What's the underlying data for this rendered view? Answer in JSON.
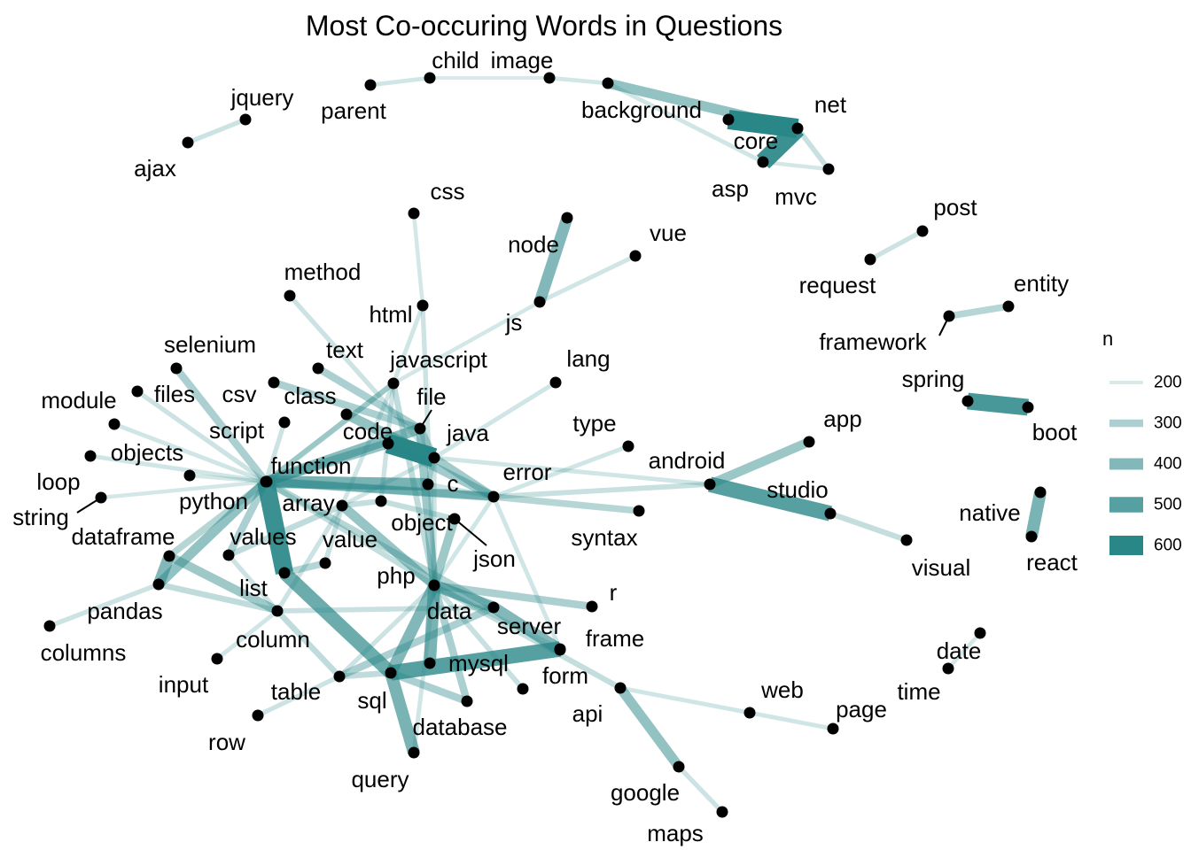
{
  "title": "Most Co-occuring Words in Questions",
  "edge_color": "#2a8788",
  "node_color": "#000000",
  "legend": {
    "title": "n",
    "entries": [
      {
        "label": "200",
        "value": 200
      },
      {
        "label": "300",
        "value": 300
      },
      {
        "label": "400",
        "value": 400
      },
      {
        "label": "500",
        "value": 500
      },
      {
        "label": "600",
        "value": 600
      }
    ]
  },
  "nodes": [
    {
      "id": "jquery",
      "label": "jquery"
    },
    {
      "id": "ajax",
      "label": "ajax"
    },
    {
      "id": "parent",
      "label": "parent"
    },
    {
      "id": "child",
      "label": "child"
    },
    {
      "id": "image",
      "label": "image"
    },
    {
      "id": "background",
      "label": "background"
    },
    {
      "id": "core",
      "label": "core"
    },
    {
      "id": "net",
      "label": "net"
    },
    {
      "id": "asp",
      "label": "asp"
    },
    {
      "id": "mvc",
      "label": "mvc"
    },
    {
      "id": "css",
      "label": "css"
    },
    {
      "id": "node",
      "label": "node"
    },
    {
      "id": "vue",
      "label": "vue"
    },
    {
      "id": "js",
      "label": "js"
    },
    {
      "id": "post",
      "label": "post"
    },
    {
      "id": "request",
      "label": "request"
    },
    {
      "id": "entity",
      "label": "entity"
    },
    {
      "id": "framework",
      "label": "framework"
    },
    {
      "id": "method",
      "label": "method"
    },
    {
      "id": "html",
      "label": "html"
    },
    {
      "id": "selenium",
      "label": "selenium"
    },
    {
      "id": "text",
      "label": "text"
    },
    {
      "id": "javascript",
      "label": "javascript"
    },
    {
      "id": "lang",
      "label": "lang"
    },
    {
      "id": "module",
      "label": "module"
    },
    {
      "id": "files",
      "label": "files"
    },
    {
      "id": "csv",
      "label": "csv"
    },
    {
      "id": "class",
      "label": "class"
    },
    {
      "id": "file",
      "label": "file"
    },
    {
      "id": "spring",
      "label": "spring"
    },
    {
      "id": "boot",
      "label": "boot"
    },
    {
      "id": "script",
      "label": "script"
    },
    {
      "id": "code",
      "label": "code"
    },
    {
      "id": "java",
      "label": "java"
    },
    {
      "id": "type",
      "label": "type"
    },
    {
      "id": "app",
      "label": "app"
    },
    {
      "id": "objects",
      "label": "objects"
    },
    {
      "id": "function",
      "label": "function"
    },
    {
      "id": "error",
      "label": "error"
    },
    {
      "id": "android",
      "label": "android"
    },
    {
      "id": "loop",
      "label": "loop"
    },
    {
      "id": "c",
      "label": "c"
    },
    {
      "id": "studio",
      "label": "studio"
    },
    {
      "id": "python",
      "label": "python"
    },
    {
      "id": "string",
      "label": "string"
    },
    {
      "id": "array",
      "label": "array"
    },
    {
      "id": "native",
      "label": "native"
    },
    {
      "id": "object",
      "label": "object"
    },
    {
      "id": "dataframe",
      "label": "dataframe"
    },
    {
      "id": "values",
      "label": "values"
    },
    {
      "id": "value",
      "label": "value"
    },
    {
      "id": "syntax",
      "label": "syntax"
    },
    {
      "id": "json",
      "label": "json"
    },
    {
      "id": "react",
      "label": "react"
    },
    {
      "id": "visual",
      "label": "visual"
    },
    {
      "id": "php",
      "label": "php"
    },
    {
      "id": "list",
      "label": "list"
    },
    {
      "id": "r",
      "label": "r"
    },
    {
      "id": "pandas",
      "label": "pandas"
    },
    {
      "id": "data",
      "label": "data"
    },
    {
      "id": "server",
      "label": "server"
    },
    {
      "id": "frame",
      "label": "frame"
    },
    {
      "id": "columns",
      "label": "columns"
    },
    {
      "id": "column",
      "label": "column"
    },
    {
      "id": "date",
      "label": "date"
    },
    {
      "id": "mysql",
      "label": "mysql"
    },
    {
      "id": "form",
      "label": "form"
    },
    {
      "id": "input",
      "label": "input"
    },
    {
      "id": "web",
      "label": "web"
    },
    {
      "id": "time",
      "label": "time"
    },
    {
      "id": "table",
      "label": "table"
    },
    {
      "id": "sql",
      "label": "sql"
    },
    {
      "id": "api",
      "label": "api"
    },
    {
      "id": "page",
      "label": "page"
    },
    {
      "id": "database",
      "label": "database"
    },
    {
      "id": "row",
      "label": "row"
    },
    {
      "id": "google",
      "label": "google"
    },
    {
      "id": "query",
      "label": "query"
    },
    {
      "id": "maps",
      "label": "maps"
    }
  ],
  "edges": [
    {
      "source": "jquery",
      "target": "ajax",
      "n": 230
    },
    {
      "source": "parent",
      "target": "child",
      "n": 220
    },
    {
      "source": "child",
      "target": "image",
      "n": 200
    },
    {
      "source": "image",
      "target": "background",
      "n": 215
    },
    {
      "source": "background",
      "target": "net",
      "n": 360
    },
    {
      "source": "core",
      "target": "net",
      "n": 600
    },
    {
      "source": "asp",
      "target": "net",
      "n": 560
    },
    {
      "source": "net",
      "target": "mvc",
      "n": 240
    },
    {
      "source": "asp",
      "target": "mvc",
      "n": 210
    },
    {
      "source": "background",
      "target": "asp",
      "n": 220
    },
    {
      "source": "node",
      "target": "js",
      "n": 400
    },
    {
      "source": "js",
      "target": "vue",
      "n": 220
    },
    {
      "source": "js",
      "target": "javascript",
      "n": 210
    },
    {
      "source": "request",
      "target": "post",
      "n": 230
    },
    {
      "source": "framework",
      "target": "entity",
      "n": 280
    },
    {
      "source": "spring",
      "target": "boot",
      "n": 530
    },
    {
      "source": "native",
      "target": "react",
      "n": 420
    },
    {
      "source": "android",
      "target": "app",
      "n": 340
    },
    {
      "source": "android",
      "target": "studio",
      "n": 500
    },
    {
      "source": "studio",
      "target": "visual",
      "n": 250
    },
    {
      "source": "css",
      "target": "html",
      "n": 210
    },
    {
      "source": "html",
      "target": "javascript",
      "n": 220
    },
    {
      "source": "html",
      "target": "php",
      "n": 230
    },
    {
      "source": "method",
      "target": "java",
      "n": 230
    },
    {
      "source": "text",
      "target": "file",
      "n": 300
    },
    {
      "source": "selenium",
      "target": "python",
      "n": 300
    },
    {
      "source": "module",
      "target": "python",
      "n": 220
    },
    {
      "source": "files",
      "target": "python",
      "n": 230
    },
    {
      "source": "objects",
      "target": "python",
      "n": 220
    },
    {
      "source": "loop",
      "target": "python",
      "n": 210
    },
    {
      "source": "string",
      "target": "python",
      "n": 210
    },
    {
      "source": "csv",
      "target": "file",
      "n": 300
    },
    {
      "source": "class",
      "target": "java",
      "n": 360
    },
    {
      "source": "script",
      "target": "python",
      "n": 230
    },
    {
      "source": "code",
      "target": "python",
      "n": 350
    },
    {
      "source": "code",
      "target": "java",
      "n": 620
    },
    {
      "source": "code",
      "target": "error",
      "n": 320
    },
    {
      "source": "file",
      "target": "python",
      "n": 380
    },
    {
      "source": "file",
      "target": "java",
      "n": 300
    },
    {
      "source": "file",
      "target": "php",
      "n": 330
    },
    {
      "source": "javascript",
      "target": "python",
      "n": 240
    },
    {
      "source": "javascript",
      "target": "array",
      "n": 220
    },
    {
      "source": "javascript",
      "target": "object",
      "n": 230
    },
    {
      "source": "javascript",
      "target": "function",
      "n": 250
    },
    {
      "source": "javascript",
      "target": "php",
      "n": 260
    },
    {
      "source": "lang",
      "target": "java",
      "n": 220
    },
    {
      "source": "type",
      "target": "error",
      "n": 220
    },
    {
      "source": "function",
      "target": "python",
      "n": 400
    },
    {
      "source": "function",
      "target": "error",
      "n": 330
    },
    {
      "source": "python",
      "target": "c",
      "n": 420
    },
    {
      "source": "python",
      "target": "error",
      "n": 300
    },
    {
      "source": "python",
      "target": "list",
      "n": 560
    },
    {
      "source": "python",
      "target": "values",
      "n": 300
    },
    {
      "source": "python",
      "target": "pandas",
      "n": 360
    },
    {
      "source": "python",
      "target": "dataframe",
      "n": 280
    },
    {
      "source": "python",
      "target": "php",
      "n": 250
    },
    {
      "source": "python",
      "target": "data",
      "n": 280
    },
    {
      "source": "java",
      "target": "error",
      "n": 320
    },
    {
      "source": "java",
      "target": "c",
      "n": 240
    },
    {
      "source": "java",
      "target": "php",
      "n": 230
    },
    {
      "source": "java",
      "target": "array",
      "n": 220
    },
    {
      "source": "java",
      "target": "android",
      "n": 220
    },
    {
      "source": "error",
      "target": "android",
      "n": 240
    },
    {
      "source": "error",
      "target": "syntax",
      "n": 280
    },
    {
      "source": "error",
      "target": "server",
      "n": 220
    },
    {
      "source": "error",
      "target": "php",
      "n": 220
    },
    {
      "source": "c",
      "target": "error",
      "n": 230
    },
    {
      "source": "array",
      "target": "php",
      "n": 350
    },
    {
      "source": "array",
      "target": "values",
      "n": 260
    },
    {
      "source": "array",
      "target": "object",
      "n": 250
    },
    {
      "source": "array",
      "target": "value",
      "n": 240
    },
    {
      "source": "array",
      "target": "column",
      "n": 230
    },
    {
      "source": "object",
      "target": "json",
      "n": 250
    },
    {
      "source": "json",
      "target": "php",
      "n": 330
    },
    {
      "source": "value",
      "target": "list",
      "n": 280
    },
    {
      "source": "values",
      "target": "column",
      "n": 230
    },
    {
      "source": "dataframe",
      "target": "column",
      "n": 330
    },
    {
      "source": "dataframe",
      "target": "pandas",
      "n": 400
    },
    {
      "source": "pandas",
      "target": "columns",
      "n": 230
    },
    {
      "source": "pandas",
      "target": "column",
      "n": 260
    },
    {
      "source": "php",
      "target": "mysql",
      "n": 420
    },
    {
      "source": "php",
      "target": "data",
      "n": 400
    },
    {
      "source": "php",
      "target": "sql",
      "n": 400
    },
    {
      "source": "php",
      "target": "form",
      "n": 240
    },
    {
      "source": "php",
      "target": "database",
      "n": 300
    },
    {
      "source": "php",
      "target": "table",
      "n": 230
    },
    {
      "source": "php",
      "target": "r",
      "n": 300
    },
    {
      "source": "php",
      "target": "server",
      "n": 230
    },
    {
      "source": "php",
      "target": "api",
      "n": 250
    },
    {
      "source": "php",
      "target": "query",
      "n": 220
    },
    {
      "source": "data",
      "target": "frame",
      "n": 400
    },
    {
      "source": "data",
      "target": "column",
      "n": 240
    },
    {
      "source": "data",
      "target": "table",
      "n": 300
    },
    {
      "source": "server",
      "target": "sql",
      "n": 500
    },
    {
      "source": "sql",
      "target": "query",
      "n": 420
    },
    {
      "source": "sql",
      "target": "table",
      "n": 260
    },
    {
      "source": "sql",
      "target": "database",
      "n": 300
    },
    {
      "source": "sql",
      "target": "list",
      "n": 450
    },
    {
      "source": "column",
      "target": "input",
      "n": 220
    },
    {
      "source": "table",
      "target": "row",
      "n": 230
    },
    {
      "source": "table",
      "target": "column",
      "n": 260
    },
    {
      "source": "api",
      "target": "google",
      "n": 360
    },
    {
      "source": "api",
      "target": "web",
      "n": 220
    },
    {
      "source": "web",
      "target": "page",
      "n": 220
    },
    {
      "source": "google",
      "target": "maps",
      "n": 230
    },
    {
      "source": "time",
      "target": "date",
      "n": 210
    }
  ]
}
